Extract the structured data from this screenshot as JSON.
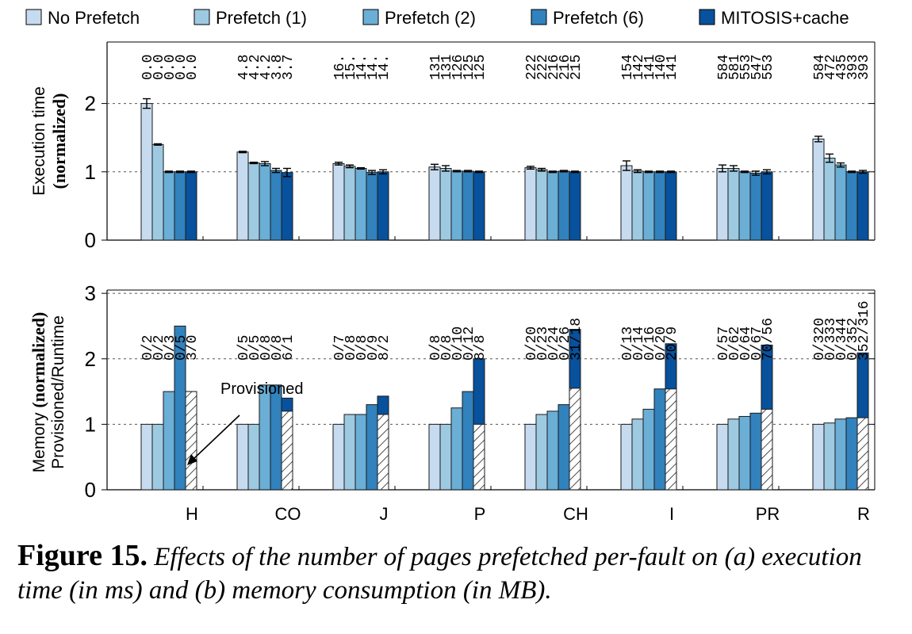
{
  "colors": [
    "#c6dbef",
    "#9ecae1",
    "#6baed6",
    "#3182bd",
    "#08519c"
  ],
  "caption": {
    "label": "Figure 15.",
    "text": "Effects of the number of pages prefetched per-fault on (a) execution time (in ms) and (b) memory consumption (in MB)."
  },
  "chart_data": [
    {
      "type": "bar",
      "panel": "a",
      "ylabel_plain": "Execution time",
      "ylabel_bold": "(normalized)",
      "ylim": [
        0,
        2.9
      ],
      "yticks": [
        0,
        1,
        2
      ],
      "grid": true,
      "legend": "top",
      "categories": [
        "H",
        "CO",
        "J",
        "P",
        "CH",
        "I",
        "PR",
        "R"
      ],
      "series": [
        {
          "name": "No Prefetch",
          "values": [
            2.0,
            1.29,
            1.12,
            1.07,
            1.06,
            1.09,
            1.05,
            1.48
          ],
          "errors": [
            0.07,
            0.01,
            0.02,
            0.04,
            0.02,
            0.07,
            0.05,
            0.04
          ]
        },
        {
          "name": "Prefetch (1)",
          "values": [
            1.4,
            1.13,
            1.08,
            1.05,
            1.03,
            1.01,
            1.05,
            1.2
          ],
          "errors": [
            0.01,
            0.01,
            0.02,
            0.04,
            0.02,
            0.02,
            0.04,
            0.06
          ]
        },
        {
          "name": "Prefetch (2)",
          "values": [
            1.0,
            1.12,
            1.05,
            1.01,
            1.0,
            1.0,
            1.0,
            1.1
          ],
          "errors": [
            0.01,
            0.03,
            0.01,
            0.01,
            0.01,
            0.01,
            0.01,
            0.03
          ]
        },
        {
          "name": "Prefetch (6)",
          "values": [
            1.0,
            1.02,
            0.99,
            1.01,
            1.01,
            1.0,
            0.98,
            1.0
          ],
          "errors": [
            0.01,
            0.03,
            0.03,
            0.01,
            0.01,
            0.01,
            0.03,
            0.01
          ]
        },
        {
          "name": "MITOSIS+cache",
          "values": [
            1.0,
            0.99,
            1.0,
            1.0,
            1.0,
            1.0,
            1.0,
            1.0
          ],
          "errors": [
            0.01,
            0.06,
            0.03,
            0.01,
            0.01,
            0.01,
            0.03,
            0.02
          ]
        }
      ],
      "annotations": [
        [
          "0.0",
          "0.0",
          "0.0",
          "0.0",
          "0.0"
        ],
        [
          "4.8",
          "4.2",
          "4.2",
          "3.8",
          "3.7"
        ],
        [
          "16.",
          "15.",
          "14.",
          "14.",
          "14."
        ],
        [
          "131",
          "131",
          "126",
          "125",
          "125"
        ],
        [
          "222",
          "222",
          "216",
          "216",
          "215"
        ],
        [
          "154",
          "142",
          "141",
          "140",
          "141"
        ],
        [
          "584",
          "581",
          "553",
          "547",
          "553"
        ],
        [
          "584",
          "472",
          "435",
          "393",
          "393"
        ]
      ]
    },
    {
      "type": "bar",
      "panel": "b",
      "ylabel_line1_plain": "Memory",
      "ylabel_line1_bold": "(normalized)",
      "ylabel_line2": "Provisioned/Runtime",
      "ylim": [
        0,
        3.05
      ],
      "yticks": [
        0,
        1,
        2,
        3
      ],
      "grid": true,
      "categories": [
        "H",
        "CO",
        "J",
        "P",
        "CH",
        "I",
        "PR",
        "R"
      ],
      "series": [
        {
          "name": "No Prefetch",
          "values": [
            1.0,
            1.0,
            1.0,
            1.0,
            1.0,
            1.0,
            1.0,
            1.0
          ]
        },
        {
          "name": "Prefetch (1)",
          "values": [
            1.0,
            1.0,
            1.15,
            1.0,
            1.15,
            1.08,
            1.08,
            1.02
          ]
        },
        {
          "name": "Prefetch (2)",
          "values": [
            1.5,
            1.6,
            1.15,
            1.25,
            1.2,
            1.23,
            1.12,
            1.08
          ]
        },
        {
          "name": "Prefetch (6)",
          "values": [
            2.5,
            1.6,
            1.3,
            1.5,
            1.3,
            1.54,
            1.17,
            1.1
          ]
        },
        {
          "name": "MITOSIS+cache",
          "values": [
            1.5,
            1.4,
            1.43,
            2.0,
            2.45,
            2.23,
            2.21,
            2.09
          ],
          "provisioned": [
            1.5,
            1.2,
            1.15,
            1.0,
            1.55,
            1.54,
            1.23,
            1.1
          ]
        }
      ],
      "provisioned_label": "Provisioned",
      "annotations": [
        [
          "0/2",
          "0/2",
          "0/3",
          "0/5",
          "3/0"
        ],
        [
          "0/5",
          "0/5",
          "0/8",
          "0/8",
          "6/1"
        ],
        [
          "0/7",
          "0/8",
          "0/8",
          "0/9",
          "8/2"
        ],
        [
          "0/8",
          "0/8",
          "0/10",
          "0/12",
          "8/8"
        ],
        [
          "0/20",
          "0/23",
          "0/24",
          "0/26",
          "31/18"
        ],
        [
          "0/13",
          "0/14",
          "0/16",
          "0/20",
          "20/9"
        ],
        [
          "0/57",
          "0/62",
          "0/64",
          "0/67",
          "70/56"
        ],
        [
          "0/320",
          "0/333",
          "0/344",
          "0/352",
          "352/316"
        ]
      ]
    }
  ]
}
